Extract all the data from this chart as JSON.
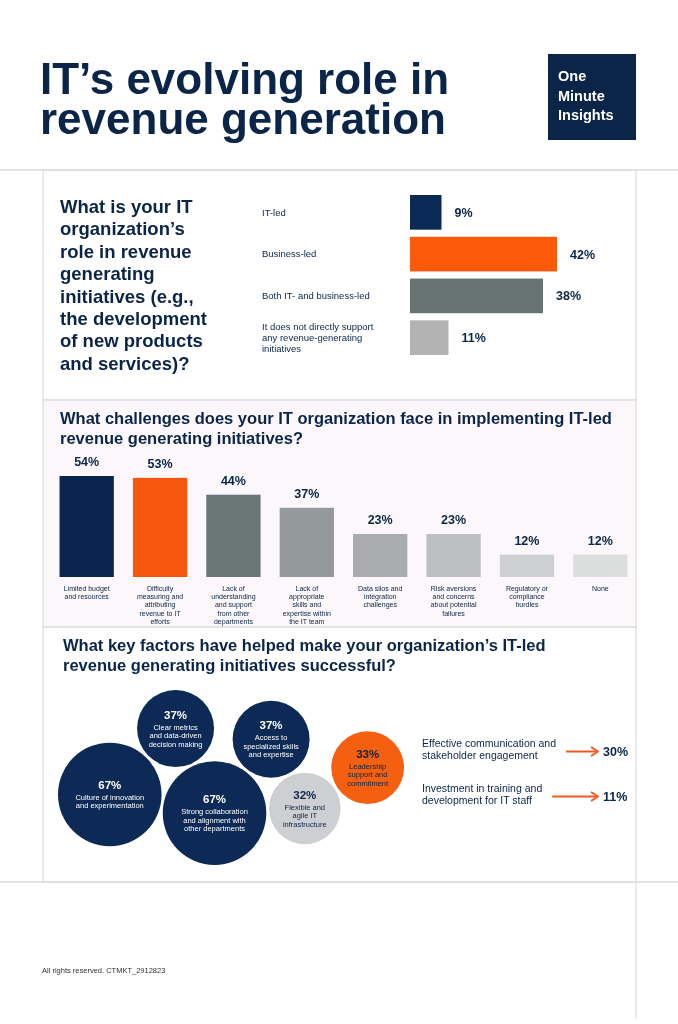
{
  "chart_data": [
    {
      "type": "other",
      "title": "IT’s evolving role in revenue generation",
      "annotations": [
        "One Minute Insights"
      ]
    },
    {
      "type": "bar",
      "orientation": "horizontal",
      "title": "What is your IT organization’s role in revenue generating initiatives (e.g., the development of new products and services)?",
      "categories": [
        "IT-led",
        "Business-led",
        "Both IT- and business-led",
        "It does not directly support any revenue-generating initiatives"
      ],
      "values": [
        9,
        42,
        38,
        11
      ],
      "colors": [
        "#0b2a55",
        "#fa5a0a",
        "#687373",
        "#b3b3b3"
      ],
      "value_labels": [
        "9%",
        "42%",
        "38%",
        "11%"
      ]
    },
    {
      "type": "bar",
      "title": "What challenges does your IT organization face in implementing IT-led revenue generating initiatives?",
      "categories": [
        "Limited budget and resources",
        "Difficulty measuring and attributing revenue to IT efforts",
        "Lack of understanding and support from other departments",
        "Lack of appropriate skills and expertise within the IT team",
        "Data silos and integration challenges",
        "Risk aversions and concerns about potential failures",
        "Regulatory or compliance hurdles",
        "None"
      ],
      "values": [
        54,
        53,
        44,
        37,
        23,
        23,
        12,
        12
      ],
      "colors": [
        "#0a2550",
        "#f7570d",
        "#6a7575",
        "#949a9a",
        "#a9abae",
        "#bebfc0",
        "#cfd0d2",
        "#dcdddd"
      ],
      "value_labels": [
        "54%",
        "53%",
        "44%",
        "37%",
        "23%",
        "23%",
        "12%",
        "12%"
      ]
    },
    {
      "type": "other",
      "title": "What key factors have helped make your organization’s IT-led revenue generating initiatives successful?",
      "categories": [
        "Culture of innovation and experimentation",
        "Clear metrics and data-driven decision making",
        "Strong collaboration and alignment with other departments",
        "Access to specialized skills and expertise",
        "Flexible and agile IT infrastructure",
        "Leadership support and commitment"
      ],
      "values": [
        67,
        37,
        67,
        37,
        32,
        33
      ],
      "colors": [
        "#0c2a55",
        "#0c2a55",
        "#0c2a55",
        "#0c2a55",
        "#cdcfd2",
        "#f4600f"
      ],
      "value_labels": [
        "67%",
        "37%",
        "67%",
        "37%",
        "32%",
        "33%"
      ]
    },
    {
      "type": "other",
      "categories": [
        "Effective communication and stakeholder engagement",
        "Investment in training and development for IT staff"
      ],
      "values": [
        30,
        11
      ],
      "value_labels": [
        "30%",
        "11%"
      ]
    },
    {
      "type": "other",
      "annotations": [
        "All rights reserved. CTMKT_2912823"
      ]
    }
  ]
}
